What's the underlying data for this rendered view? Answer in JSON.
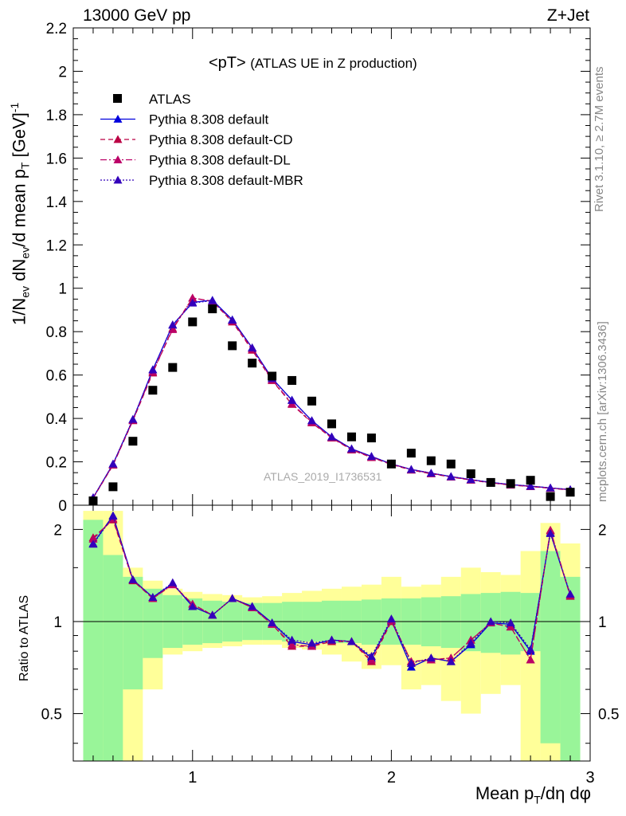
{
  "header": {
    "left": "13000 GeV pp",
    "right": "Z+Jet"
  },
  "plot_title": "<pT>",
  "plot_subtitle": "(ATLAS UE in Z production)",
  "ylabel_main": "1/N_ev dN_ev/d mean p_T [GeV]^-1",
  "ylabel_ratio": "Ratio to ATLAS",
  "xlabel": "Mean p_T/dη dφ",
  "watermark": "ATLAS_2019_I1736531",
  "side_top": "Rivet 3.1.10, ≥ 2.7M events",
  "side_bottom": "mcplots.cern.ch [arXiv:1306.3436]",
  "colors": {
    "data": "#000000",
    "default": "#0000dd",
    "cd": "#bb0044",
    "dl": "#bb0066",
    "mbr": "#3300bb",
    "band_inner": "#99f599",
    "band_outer": "#ffff99"
  },
  "chart_data": [
    {
      "type": "scatter",
      "panel": "main",
      "xlim": [
        0.4,
        3.0
      ],
      "ylim": [
        0,
        2.2
      ],
      "xticks": [
        1,
        2,
        3
      ],
      "yticks": [
        0,
        0.2,
        0.4,
        0.6,
        0.8,
        1,
        1.2,
        1.4,
        1.6,
        1.8,
        2,
        2.2
      ],
      "ytick_labels": [
        "0",
        "0.2",
        "0.4",
        "0.6",
        "0.8",
        "1",
        "1.2",
        "1.4",
        "1.6",
        "1.8",
        "2",
        "2.2"
      ],
      "x": [
        0.5,
        0.6,
        0.7,
        0.8,
        0.9,
        1.0,
        1.1,
        1.2,
        1.3,
        1.4,
        1.5,
        1.6,
        1.7,
        1.8,
        1.9,
        2.0,
        2.1,
        2.2,
        2.3,
        2.4,
        2.5,
        2.6,
        2.7,
        2.8,
        2.9
      ],
      "legend": [
        "ATLAS",
        "Pythia 8.308 default",
        "Pythia 8.308 default-CD",
        "Pythia 8.308 default-DL",
        "Pythia 8.308 default-MBR"
      ],
      "series": [
        {
          "name": "ATLAS",
          "values": [
            0.02,
            0.085,
            0.295,
            0.53,
            0.635,
            0.845,
            0.905,
            0.735,
            0.655,
            0.595,
            0.575,
            0.48,
            0.375,
            0.315,
            0.31,
            0.19,
            0.24,
            0.205,
            0.19,
            0.145,
            0.105,
            0.1,
            0.115,
            0.04,
            0.06
          ]
        },
        {
          "name": "Pythia 8.308 default",
          "values": [
            0.035,
            0.19,
            0.395,
            0.625,
            0.83,
            0.935,
            0.945,
            0.855,
            0.725,
            0.585,
            0.485,
            0.39,
            0.315,
            0.26,
            0.225,
            0.19,
            0.165,
            0.148,
            0.132,
            0.118,
            0.105,
            0.095,
            0.088,
            0.08,
            0.072
          ]
        },
        {
          "name": "Pythia 8.308 default-CD",
          "values": [
            0.033,
            0.185,
            0.39,
            0.61,
            0.815,
            0.955,
            0.94,
            0.845,
            0.715,
            0.575,
            0.465,
            0.38,
            0.31,
            0.255,
            0.22,
            0.188,
            0.162,
            0.145,
            0.13,
            0.116,
            0.103,
            0.093,
            0.086,
            0.078,
            0.07
          ]
        },
        {
          "name": "Pythia 8.308 default-DL",
          "values": [
            0.034,
            0.187,
            0.392,
            0.615,
            0.81,
            0.955,
            0.94,
            0.85,
            0.72,
            0.578,
            0.468,
            0.383,
            0.312,
            0.257,
            0.222,
            0.19,
            0.164,
            0.147,
            0.131,
            0.117,
            0.104,
            0.094,
            0.087,
            0.079,
            0.071
          ]
        },
        {
          "name": "Pythia 8.308 default-MBR",
          "values": [
            0.035,
            0.19,
            0.396,
            0.624,
            0.832,
            0.932,
            0.943,
            0.853,
            0.726,
            0.584,
            0.483,
            0.39,
            0.315,
            0.26,
            0.225,
            0.19,
            0.165,
            0.148,
            0.132,
            0.118,
            0.105,
            0.095,
            0.088,
            0.08,
            0.072
          ]
        }
      ]
    },
    {
      "type": "line",
      "panel": "ratio",
      "xlim": [
        0.4,
        3.0
      ],
      "ylim": [
        0.35,
        2.4
      ],
      "yscale": "log",
      "yticks": [
        0.5,
        1,
        2
      ],
      "ytick_labels": [
        "0.5",
        "1",
        "2"
      ],
      "x": [
        0.5,
        0.6,
        0.7,
        0.8,
        0.9,
        1.0,
        1.1,
        1.2,
        1.3,
        1.4,
        1.5,
        1.6,
        1.7,
        1.8,
        1.9,
        2.0,
        2.1,
        2.2,
        2.3,
        2.4,
        2.5,
        2.6,
        2.7,
        2.8,
        2.9
      ],
      "bands": {
        "inner_low": [
          0.34,
          0.34,
          0.6,
          0.76,
          0.82,
          0.84,
          0.85,
          0.86,
          0.87,
          0.87,
          0.86,
          0.86,
          0.85,
          0.85,
          0.84,
          0.84,
          0.84,
          0.83,
          0.82,
          0.8,
          0.79,
          0.78,
          0.8,
          0.4,
          0.33
        ],
        "inner_high": [
          2.15,
          1.65,
          1.4,
          1.28,
          1.22,
          1.19,
          1.17,
          1.16,
          1.15,
          1.15,
          1.16,
          1.16,
          1.17,
          1.17,
          1.18,
          1.19,
          1.19,
          1.2,
          1.21,
          1.23,
          1.24,
          1.25,
          1.24,
          1.7,
          1.4
        ],
        "outer_low": [
          0.34,
          0.34,
          0.34,
          0.6,
          0.78,
          0.8,
          0.82,
          0.83,
          0.84,
          0.84,
          0.82,
          0.81,
          0.78,
          0.74,
          0.7,
          0.72,
          0.6,
          0.62,
          0.55,
          0.5,
          0.58,
          0.62,
          0.34,
          0.34,
          0.34
        ],
        "outer_high": [
          2.3,
          2.3,
          1.5,
          1.36,
          1.28,
          1.25,
          1.23,
          1.22,
          1.2,
          1.21,
          1.24,
          1.26,
          1.28,
          1.3,
          1.32,
          1.4,
          1.3,
          1.32,
          1.4,
          1.5,
          1.45,
          1.42,
          1.7,
          2.1,
          1.8
        ]
      },
      "series": [
        {
          "name": "Pythia 8.308 default",
          "values": [
            1.8,
            2.22,
            1.37,
            1.2,
            1.33,
            1.12,
            1.05,
            1.19,
            1.12,
            0.99,
            0.86,
            0.84,
            0.87,
            0.86,
            0.76,
            1.01,
            0.71,
            0.76,
            0.74,
            0.84,
            0.99,
            0.98,
            0.8,
            1.95,
            1.22
          ]
        },
        {
          "name": "Pythia 8.308 default-CD",
          "values": [
            1.88,
            2.15,
            1.36,
            1.19,
            1.32,
            1.14,
            1.05,
            1.19,
            1.11,
            0.98,
            0.83,
            0.83,
            0.86,
            0.86,
            0.74,
            1.0,
            0.74,
            0.75,
            0.76,
            0.87,
            0.99,
            0.96,
            0.75,
            1.98,
            1.21
          ]
        },
        {
          "name": "Pythia 8.308 default-DL",
          "values": [
            1.86,
            2.17,
            1.37,
            1.19,
            1.32,
            1.14,
            1.05,
            1.19,
            1.11,
            0.98,
            0.84,
            0.83,
            0.87,
            0.86,
            0.75,
            1.01,
            0.74,
            0.75,
            0.76,
            0.87,
            0.99,
            0.96,
            0.75,
            1.99,
            1.22
          ]
        },
        {
          "name": "Pythia 8.308 default-MBR",
          "values": [
            1.79,
            2.21,
            1.37,
            1.2,
            1.34,
            1.12,
            1.05,
            1.19,
            1.12,
            0.99,
            0.87,
            0.85,
            0.87,
            0.86,
            0.77,
            1.02,
            0.73,
            0.76,
            0.74,
            0.85,
            1.0,
            0.99,
            0.81,
            1.94,
            1.23
          ]
        }
      ]
    }
  ]
}
